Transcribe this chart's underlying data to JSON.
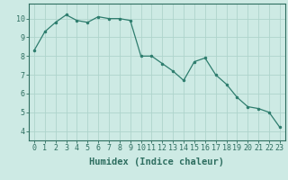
{
  "x_data": [
    0,
    1,
    2,
    3,
    4,
    5,
    6,
    7,
    8,
    9,
    10,
    11,
    12,
    13,
    14,
    15,
    16,
    17,
    18,
    19,
    20,
    21,
    22,
    23
  ],
  "y_data": [
    8.3,
    9.3,
    9.8,
    10.2,
    9.9,
    9.8,
    10.1,
    10.0,
    10.0,
    9.9,
    8.0,
    8.0,
    7.6,
    7.2,
    6.7,
    7.7,
    7.9,
    7.0,
    6.5,
    5.8,
    5.3,
    5.2,
    5.0,
    4.2
  ],
  "line_color": "#2e7d6e",
  "marker_color": "#2e7d6e",
  "bg_color": "#cdeae4",
  "grid_color": "#aed4cc",
  "xlabel": "Humidex (Indice chaleur)",
  "xlim": [
    -0.5,
    23.5
  ],
  "ylim": [
    3.5,
    10.8
  ],
  "yticks": [
    4,
    5,
    6,
    7,
    8,
    9,
    10
  ],
  "xticks": [
    0,
    1,
    2,
    3,
    4,
    5,
    6,
    7,
    8,
    9,
    10,
    11,
    12,
    13,
    14,
    15,
    16,
    17,
    18,
    19,
    20,
    21,
    22,
    23
  ],
  "tick_label_size": 6.0,
  "xlabel_size": 7.5,
  "border_color": "#2e6e60",
  "linewidth": 0.9,
  "markersize": 3.0
}
